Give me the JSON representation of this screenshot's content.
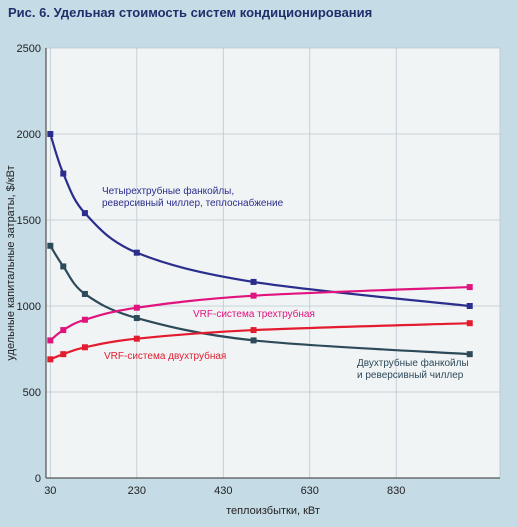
{
  "figure": {
    "title": "Рис. 6. Удельная стоимость систем кондиционирования"
  },
  "chart_data": {
    "type": "line",
    "title": "Рис. 6. Удельная стоимость систем кондиционирования",
    "xlabel": "теплоизбытки, кВт",
    "ylabel": "удельные капитальные затраты, $/кВт",
    "xlim": [
      20,
      1070
    ],
    "ylim": [
      0,
      2500
    ],
    "xticks": [
      30,
      230,
      430,
      630,
      830
    ],
    "yticks": [
      0,
      500,
      1000,
      1500,
      2000,
      2500
    ],
    "grid": true,
    "series": [
      {
        "name": "Четырехтрубные фанкойлы, реверсивный чиллер, теплоснабжение",
        "color": "#2b2e8c",
        "x": [
          30,
          60,
          110,
          230,
          500,
          1000
        ],
        "y": [
          2000,
          1770,
          1540,
          1310,
          1140,
          1000
        ]
      },
      {
        "name": "Двухтрубные фанкойлы и реверсивный чиллер",
        "color": "#2d4a5a",
        "x": [
          30,
          60,
          110,
          230,
          500,
          1000
        ],
        "y": [
          1350,
          1230,
          1070,
          930,
          800,
          720
        ]
      },
      {
        "name": "VRF-система трехтрубная",
        "color": "#e0147e",
        "x": [
          30,
          60,
          110,
          230,
          500,
          1000
        ],
        "y": [
          800,
          860,
          920,
          990,
          1060,
          1110
        ]
      },
      {
        "name": "VRF-система двухтрубная",
        "color": "#e31b2e",
        "x": [
          30,
          60,
          110,
          230,
          500,
          1000
        ],
        "y": [
          690,
          720,
          760,
          810,
          860,
          900
        ]
      }
    ],
    "annotations": [
      {
        "lines": [
          "Четырехтрубные фанкойлы,",
          "реверсивный чиллер, теплоснабжение"
        ],
        "color": "#2b2e8c"
      },
      {
        "lines": [
          "VRF-система трехтрубная"
        ],
        "color": "#e0147e"
      },
      {
        "lines": [
          "VRF-система двухтрубная"
        ],
        "color": "#e31b2e"
      },
      {
        "lines": [
          "Двухтрубные фанкойлы",
          "и реверсивный чиллер"
        ],
        "color": "#2d4a5a"
      }
    ]
  }
}
